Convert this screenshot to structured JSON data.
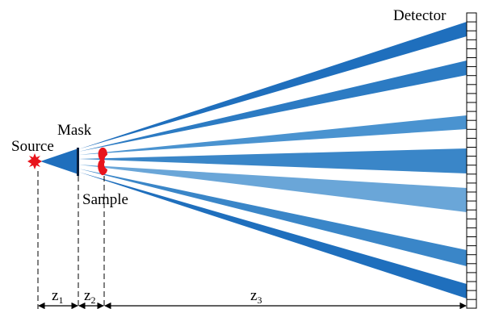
{
  "labels": {
    "detector": "Detector",
    "mask": "Mask",
    "source": "Source",
    "sample": "Sample"
  },
  "dimensions": {
    "z1": {
      "main": "z",
      "sub": "1"
    },
    "z2": {
      "main": "z",
      "sub": "2"
    },
    "z3": {
      "main": "z",
      "sub": "3"
    }
  },
  "colors": {
    "beam_dark": "#1f6fbd",
    "beam_mid": "#3a86c8",
    "beam_light": "#6aa6d8",
    "source": "#e8141c",
    "sample": "#e8141c",
    "mask": "#0a1f3c",
    "line": "#000000"
  },
  "icons": {
    "source": "star-burst",
    "sample": "red-blob"
  }
}
